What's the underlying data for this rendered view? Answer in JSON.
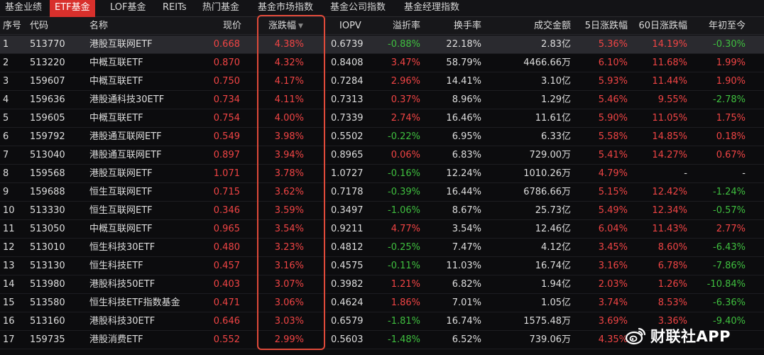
{
  "tabs": [
    {
      "label": "基金业绩",
      "active": false
    },
    {
      "label": "ETF基金",
      "active": true
    },
    {
      "label": "LOF基金",
      "active": false
    },
    {
      "label": "REITs",
      "active": false
    },
    {
      "label": "热门基金",
      "active": false
    },
    {
      "label": "基金市场指数",
      "active": false
    },
    {
      "label": "基金公司指数",
      "active": false
    },
    {
      "label": "基金经理指数",
      "active": false
    }
  ],
  "table": {
    "sorted_column": "change_pct",
    "sort_direction": "desc",
    "headers": {
      "seq": "序号",
      "code": "代码",
      "name": "名称",
      "price": "现价",
      "change_pct": "涨跌幅",
      "iopv": "IOPV",
      "premium": "溢折率",
      "turnover": "换手率",
      "amount": "成交金额",
      "chg5d": "5日涨跌幅",
      "chg60d": "60日涨跌幅",
      "ytd": "年初至今"
    },
    "rows": [
      {
        "seq": "1",
        "code": "513770",
        "name": "港股互联网ETF",
        "price": "0.668",
        "change_pct": "4.38%",
        "iopv": "0.6739",
        "premium": "-0.88%",
        "turnover": "22.18%",
        "amount": "2.83亿",
        "chg5d": "5.36%",
        "chg60d": "14.19%",
        "ytd": "-0.30%"
      },
      {
        "seq": "2",
        "code": "513220",
        "name": "中概互联ETF",
        "price": "0.870",
        "change_pct": "4.32%",
        "iopv": "0.8408",
        "premium": "3.47%",
        "turnover": "58.79%",
        "amount": "4466.66万",
        "chg5d": "6.10%",
        "chg60d": "11.68%",
        "ytd": "1.99%"
      },
      {
        "seq": "3",
        "code": "159607",
        "name": "中概互联ETF",
        "price": "0.750",
        "change_pct": "4.17%",
        "iopv": "0.7284",
        "premium": "2.96%",
        "turnover": "14.41%",
        "amount": "3.10亿",
        "chg5d": "5.93%",
        "chg60d": "11.44%",
        "ytd": "1.90%"
      },
      {
        "seq": "4",
        "code": "159636",
        "name": "港股通科技30ETF",
        "price": "0.734",
        "change_pct": "4.11%",
        "iopv": "0.7313",
        "premium": "0.37%",
        "turnover": "8.96%",
        "amount": "1.29亿",
        "chg5d": "5.46%",
        "chg60d": "9.55%",
        "ytd": "-2.78%"
      },
      {
        "seq": "5",
        "code": "159605",
        "name": "中概互联ETF",
        "price": "0.754",
        "change_pct": "4.00%",
        "iopv": "0.7339",
        "premium": "2.74%",
        "turnover": "16.46%",
        "amount": "11.61亿",
        "chg5d": "5.90%",
        "chg60d": "11.05%",
        "ytd": "1.75%"
      },
      {
        "seq": "6",
        "code": "159792",
        "name": "港股通互联网ETF",
        "price": "0.549",
        "change_pct": "3.98%",
        "iopv": "0.5502",
        "premium": "-0.22%",
        "turnover": "6.95%",
        "amount": "6.33亿",
        "chg5d": "5.58%",
        "chg60d": "14.85%",
        "ytd": "0.18%"
      },
      {
        "seq": "7",
        "code": "513040",
        "name": "港股通互联网ETF",
        "price": "0.897",
        "change_pct": "3.94%",
        "iopv": "0.8965",
        "premium": "0.06%",
        "turnover": "6.83%",
        "amount": "729.00万",
        "chg5d": "5.41%",
        "chg60d": "14.27%",
        "ytd": "0.67%"
      },
      {
        "seq": "8",
        "code": "159568",
        "name": "港股互联网ETF",
        "price": "1.071",
        "change_pct": "3.78%",
        "iopv": "1.0727",
        "premium": "-0.16%",
        "turnover": "12.24%",
        "amount": "1010.26万",
        "chg5d": "4.79%",
        "chg60d": "-",
        "ytd": "-"
      },
      {
        "seq": "9",
        "code": "159688",
        "name": "恒生互联网ETF",
        "price": "0.715",
        "change_pct": "3.62%",
        "iopv": "0.7178",
        "premium": "-0.39%",
        "turnover": "16.44%",
        "amount": "6786.66万",
        "chg5d": "5.15%",
        "chg60d": "12.42%",
        "ytd": "-1.24%"
      },
      {
        "seq": "10",
        "code": "513330",
        "name": "恒生互联网ETF",
        "price": "0.346",
        "change_pct": "3.59%",
        "iopv": "0.3497",
        "premium": "-1.06%",
        "turnover": "8.67%",
        "amount": "25.73亿",
        "chg5d": "5.49%",
        "chg60d": "12.34%",
        "ytd": "-0.57%"
      },
      {
        "seq": "11",
        "code": "513050",
        "name": "中概互联网ETF",
        "price": "0.965",
        "change_pct": "3.54%",
        "iopv": "0.9211",
        "premium": "4.77%",
        "turnover": "3.54%",
        "amount": "12.46亿",
        "chg5d": "6.04%",
        "chg60d": "11.43%",
        "ytd": "2.77%"
      },
      {
        "seq": "12",
        "code": "513010",
        "name": "恒生科技30ETF",
        "price": "0.480",
        "change_pct": "3.23%",
        "iopv": "0.4812",
        "premium": "-0.25%",
        "turnover": "7.47%",
        "amount": "4.12亿",
        "chg5d": "3.45%",
        "chg60d": "8.60%",
        "ytd": "-6.43%"
      },
      {
        "seq": "13",
        "code": "513130",
        "name": "恒生科技ETF",
        "price": "0.457",
        "change_pct": "3.16%",
        "iopv": "0.4575",
        "premium": "-0.11%",
        "turnover": "11.03%",
        "amount": "16.74亿",
        "chg5d": "3.16%",
        "chg60d": "6.78%",
        "ytd": "-7.86%"
      },
      {
        "seq": "14",
        "code": "513980",
        "name": "港股科技50ETF",
        "price": "0.403",
        "change_pct": "3.07%",
        "iopv": "0.3982",
        "premium": "1.21%",
        "turnover": "6.82%",
        "amount": "1.94亿",
        "chg5d": "2.03%",
        "chg60d": "1.26%",
        "ytd": "-10.84%"
      },
      {
        "seq": "15",
        "code": "513580",
        "name": "恒生科技ETF指数基金",
        "price": "0.471",
        "change_pct": "3.06%",
        "iopv": "0.4624",
        "premium": "1.86%",
        "turnover": "7.01%",
        "amount": "1.05亿",
        "chg5d": "3.74%",
        "chg60d": "8.53%",
        "ytd": "-6.36%"
      },
      {
        "seq": "16",
        "code": "513160",
        "name": "港股科技30ETF",
        "price": "0.646",
        "change_pct": "3.03%",
        "iopv": "0.6579",
        "premium": "-1.81%",
        "turnover": "16.74%",
        "amount": "1575.48万",
        "chg5d": "3.69%",
        "chg60d": "3.36%",
        "ytd": "-9.40%"
      },
      {
        "seq": "17",
        "code": "159735",
        "name": "港股消费ETF",
        "price": "0.552",
        "change_pct": "2.99%",
        "iopv": "0.5603",
        "premium": "-1.48%",
        "turnover": "6.52%",
        "amount": "739.06万",
        "chg5d": "4.35%",
        "chg60d": "",
        "ytd": ""
      }
    ]
  },
  "watermark": {
    "text": "财联社APP",
    "icon": "weibo-logo-icon"
  },
  "colors": {
    "up": "#f04444",
    "down": "#3fbf3f",
    "active_tab": "#d8302c",
    "highlight_border": "#e04a3a"
  }
}
